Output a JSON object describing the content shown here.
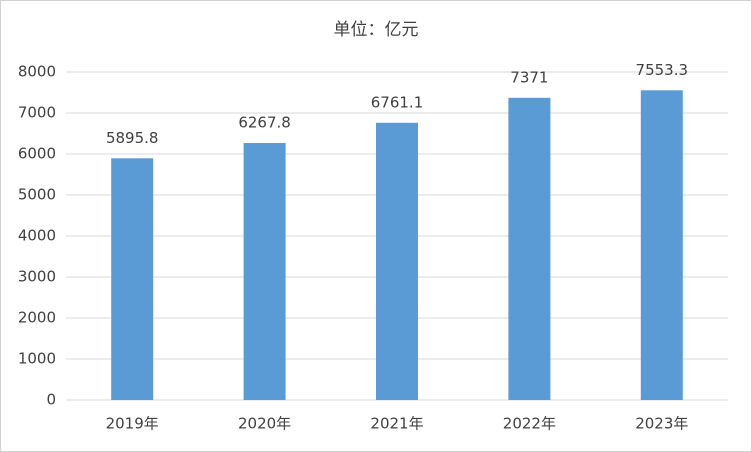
{
  "chart_data": {
    "type": "bar",
    "title": "单位：亿元",
    "categories": [
      "2019年",
      "2020年",
      "2021年",
      "2022年",
      "2023年"
    ],
    "values": [
      5895.8,
      6267.8,
      6761.1,
      7371,
      7553.3
    ],
    "color": "#5b9bd5",
    "ylim": [
      0,
      8000
    ],
    "yticks": [
      0,
      1000,
      2000,
      3000,
      4000,
      5000,
      6000,
      7000,
      8000
    ],
    "grid": true
  }
}
